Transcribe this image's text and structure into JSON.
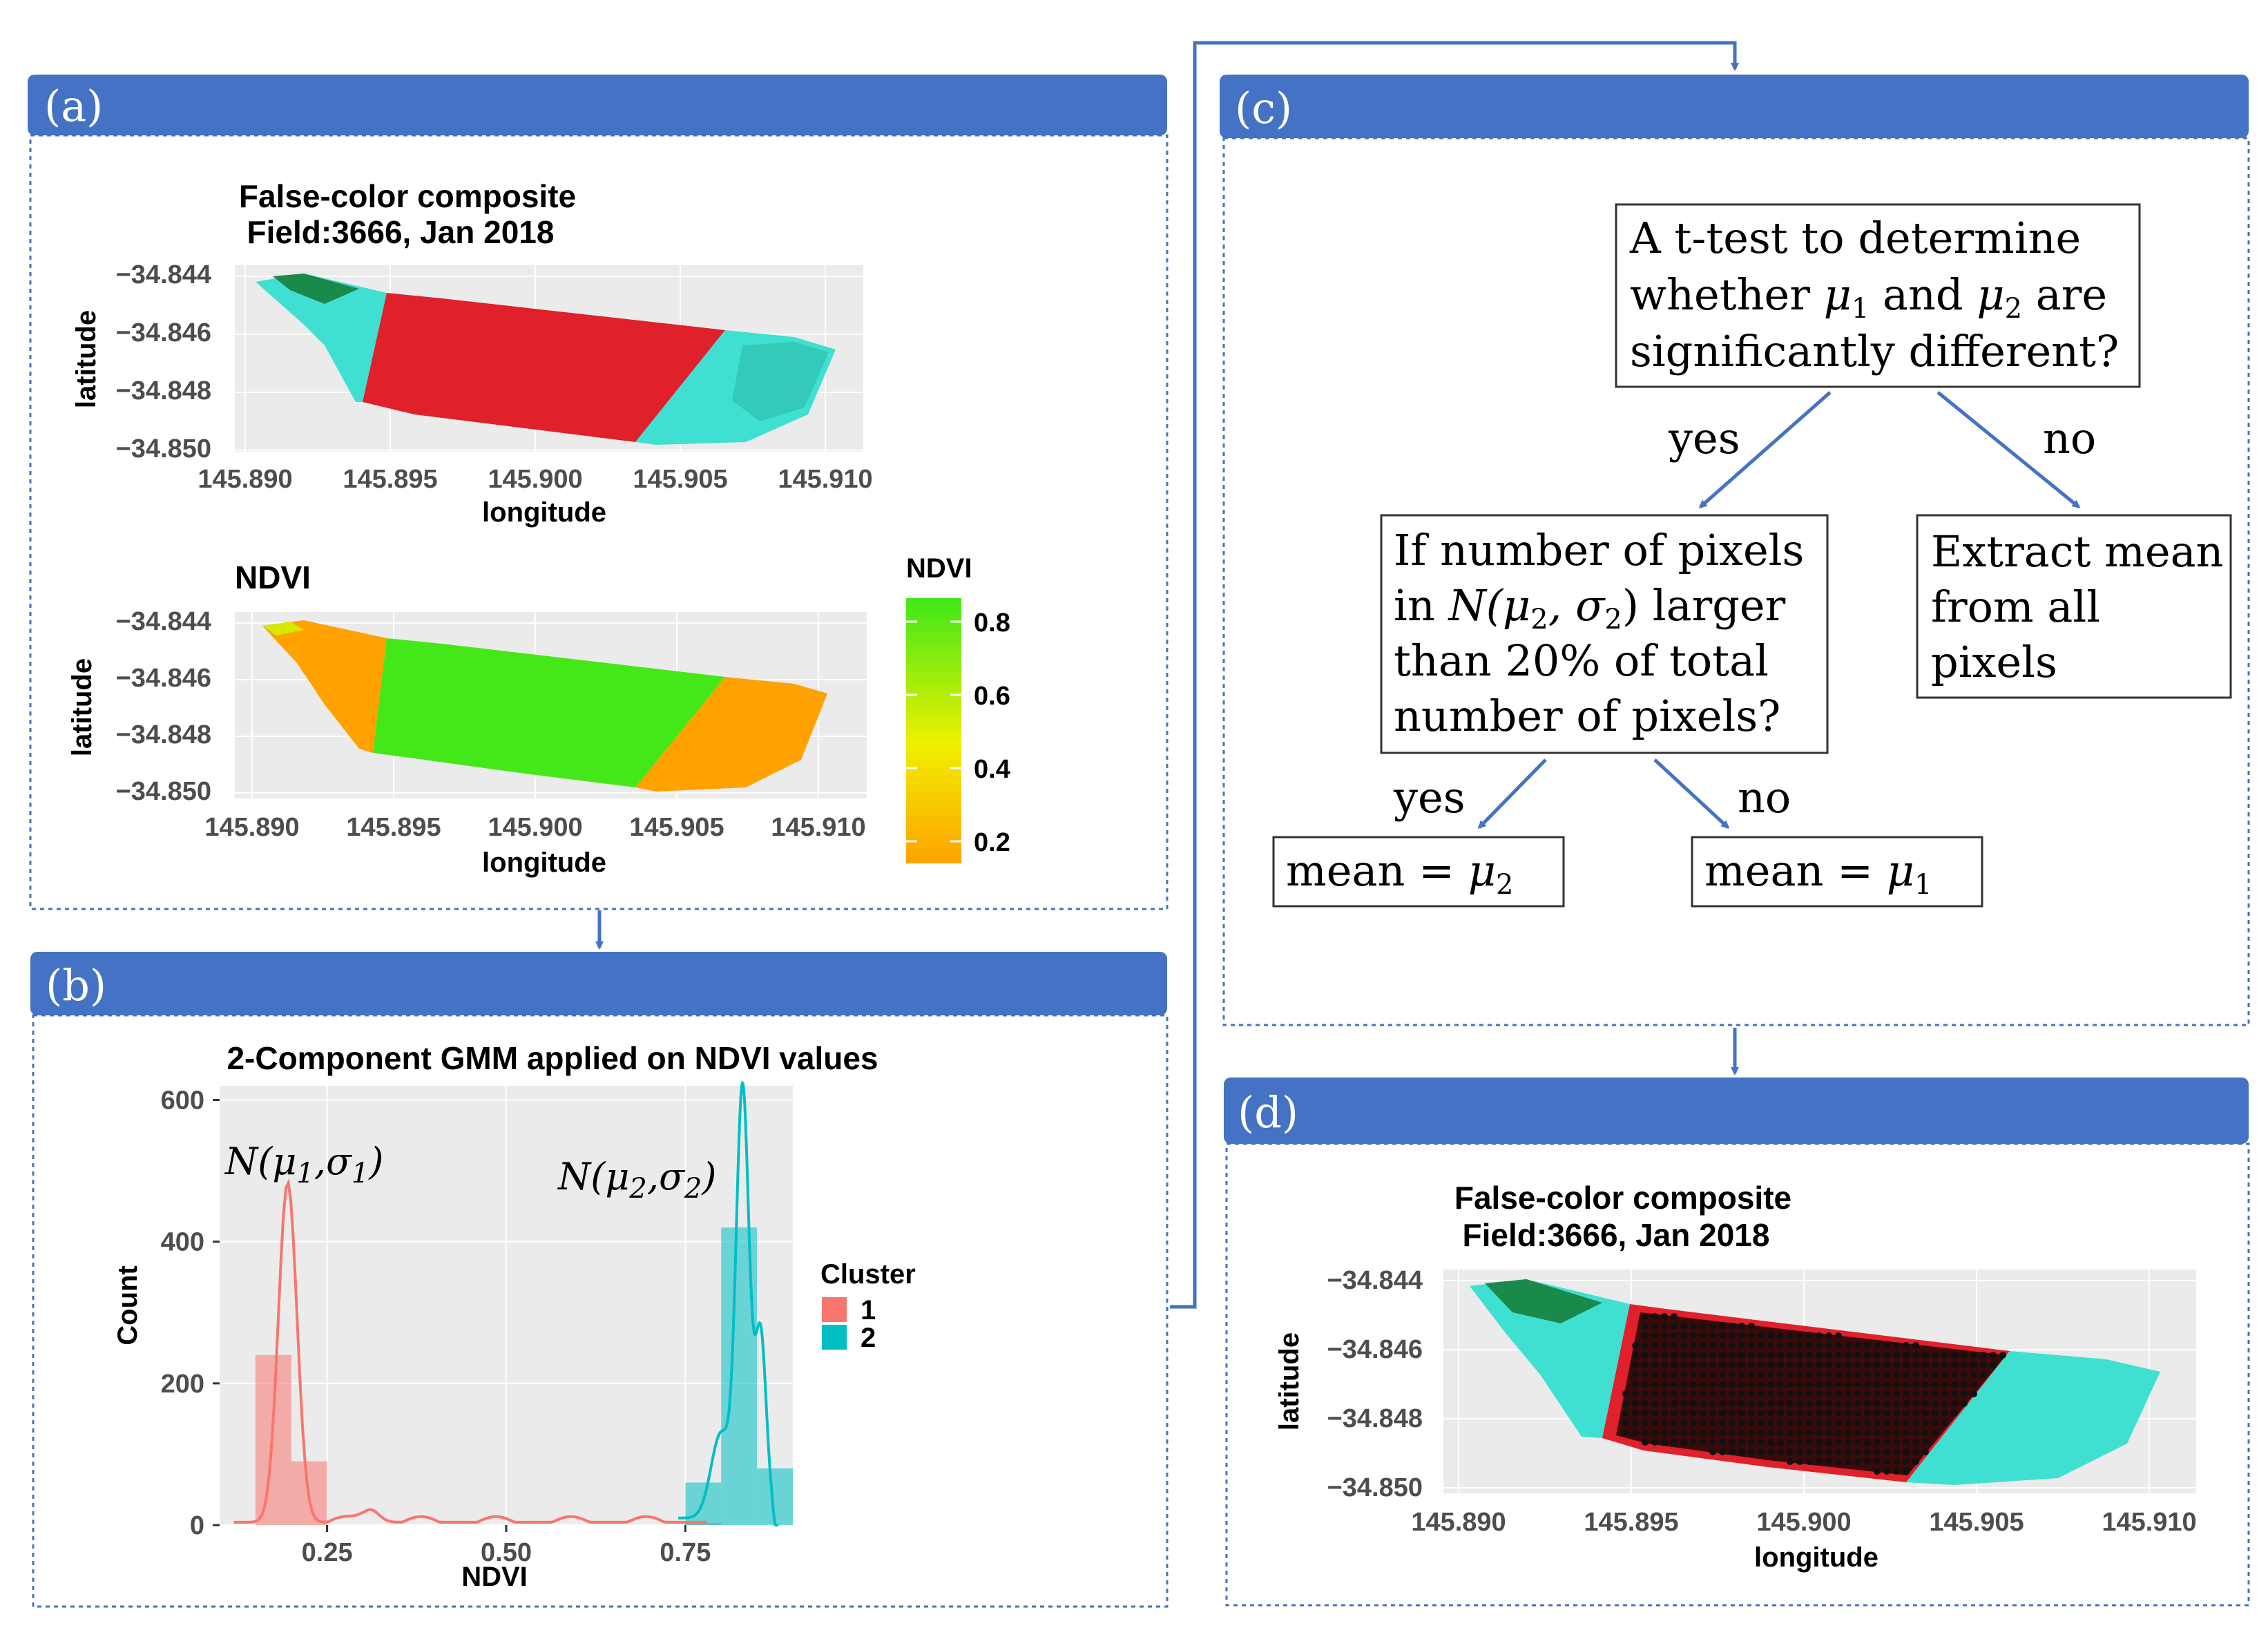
{
  "panels": {
    "a": {
      "label": "(a)",
      "fcc": {
        "title1": "False-color composite",
        "title2": "Field:3666, Jan 2018",
        "xticks": [
          "145.890",
          "145.895",
          "145.900",
          "145.905",
          "145.910"
        ],
        "yticks": [
          "−34.844",
          "−34.846",
          "−34.848",
          "−34.850"
        ],
        "xlabel": "longitude",
        "ylabel": "latitude"
      },
      "ndvi": {
        "title": "NDVI",
        "xticks": [
          "145.890",
          "145.895",
          "145.900",
          "145.905",
          "145.910"
        ],
        "yticks": [
          "−34.844",
          "−34.846",
          "−34.848",
          "−34.850"
        ],
        "xlabel": "longitude",
        "ylabel": "latitude",
        "legend_title": "NDVI",
        "legend_ticks": [
          "0.8",
          "0.6",
          "0.4",
          "0.2"
        ]
      }
    },
    "b": {
      "label": "(b)",
      "legend_title": "Cluster",
      "legend_items": [
        "1",
        "2"
      ],
      "annot1": "N(μ1,σ1)",
      "annot2": "N(μ2,σ2)"
    },
    "c": {
      "label": "(c)",
      "box1": {
        "line1": "A t-test to determine",
        "line2_pre": "whether ",
        "line2_m1": "μ",
        "line2_s1": "1",
        "line2_mid": " and ",
        "line2_m2": "μ",
        "line2_s2": "2",
        "line2_post": " are",
        "line3": "significantly different?"
      },
      "yes1": "yes",
      "no1": "no",
      "box2": {
        "line1": "If number of pixels",
        "line2_pre": "in ",
        "line2_math": "N(μ",
        "line2_s1": "2",
        "line2_mid": ", σ",
        "line2_s2": "2",
        "line2_close": ")",
        "line2_post": " larger",
        "line3": "than 20% of total",
        "line4": "number of pixels?"
      },
      "box3": {
        "line1": "Extract mean",
        "line2": "from all",
        "line3": "pixels"
      },
      "yes2": "yes",
      "no2": "no",
      "box4": {
        "pre": "mean = ",
        "math": "μ",
        "sub": "2"
      },
      "box5": {
        "pre": "mean = ",
        "math": "μ",
        "sub": "1"
      }
    },
    "d": {
      "label": "(d)",
      "title1": "False-color composite",
      "title2": "Field:3666, Jan 2018",
      "xticks": [
        "145.890",
        "145.895",
        "145.900",
        "145.905",
        "145.910"
      ],
      "yticks": [
        "−34.844",
        "−34.846",
        "−34.848",
        "−34.850"
      ],
      "xlabel": "longitude",
      "ylabel": "latitude"
    }
  },
  "chart_data": {
    "type": "bar",
    "title": "2-Component GMM applied on NDVI values",
    "xlabel": "NDVI",
    "ylabel": "Count",
    "xlim": [
      0.1,
      0.9
    ],
    "ylim": [
      0,
      620
    ],
    "xticks": [
      0.25,
      0.5,
      0.75
    ],
    "xtick_labels": [
      "0.25",
      "0.50",
      "0.75"
    ],
    "yticks": [
      0,
      200,
      400,
      600
    ],
    "ytick_labels": [
      "0",
      "200",
      "400",
      "600"
    ],
    "bin_width": 0.05,
    "series": [
      {
        "name": "1",
        "color": "#f8766d",
        "bins": [
          {
            "center": 0.175,
            "value": 240
          },
          {
            "center": 0.225,
            "value": 90
          },
          {
            "center": 0.775,
            "value": 3
          }
        ],
        "density_peak": {
          "x": 0.195,
          "y": 480
        }
      },
      {
        "name": "2",
        "color": "#00bfc4",
        "bins": [
          {
            "center": 0.775,
            "value": 60
          },
          {
            "center": 0.825,
            "value": 420
          },
          {
            "center": 0.875,
            "value": 80
          }
        ],
        "density_peak": {
          "x": 0.83,
          "y": 600
        }
      }
    ]
  },
  "colors": {
    "header_blue": "#4472c4",
    "arrow_blue": "#4472c4",
    "panel_bg": "#ebebeb",
    "fcc_red": "#e0202a",
    "fcc_cyan": "#3fe0d2",
    "fcc_green": "#1a8a4a",
    "ndvi_green": "#44e818",
    "ndvi_orange": "#ffa200",
    "dot_black": "#111111"
  }
}
